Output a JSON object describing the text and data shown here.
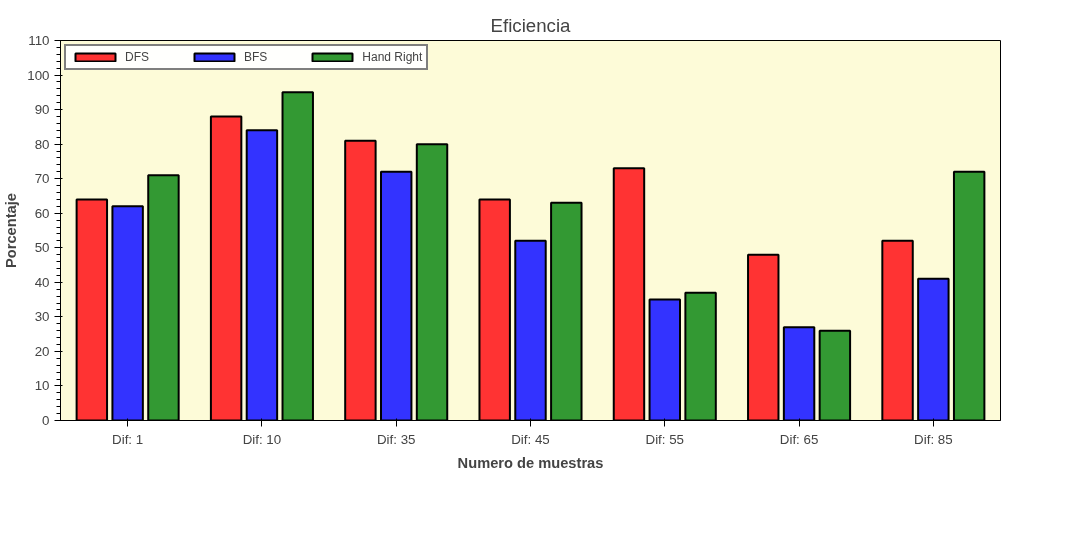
{
  "chart_data": {
    "type": "bar",
    "title": "Eficiencia",
    "xlabel": "Numero de muestras",
    "ylabel": "Porcentaje",
    "categories": [
      "Dif: 1",
      "Dif: 10",
      "Dif: 35",
      "Dif: 45",
      "Dif: 55",
      "Dif: 65",
      "Dif: 85"
    ],
    "series": [
      {
        "name": "DFS",
        "color": "#ff3333",
        "values": [
          64,
          88,
          81,
          64,
          73,
          48,
          52
        ]
      },
      {
        "name": "BFS",
        "color": "#3333ff",
        "values": [
          62,
          84,
          72,
          52,
          35,
          27,
          41
        ]
      },
      {
        "name": "Hand Right",
        "color": "#339933",
        "values": [
          71,
          95,
          80,
          63,
          37,
          26,
          72
        ]
      }
    ],
    "ylim": [
      0,
      110
    ],
    "yticks": [
      0,
      10,
      20,
      30,
      40,
      50,
      60,
      70,
      80,
      90,
      100,
      110
    ],
    "grid": false,
    "legend": "top left"
  }
}
